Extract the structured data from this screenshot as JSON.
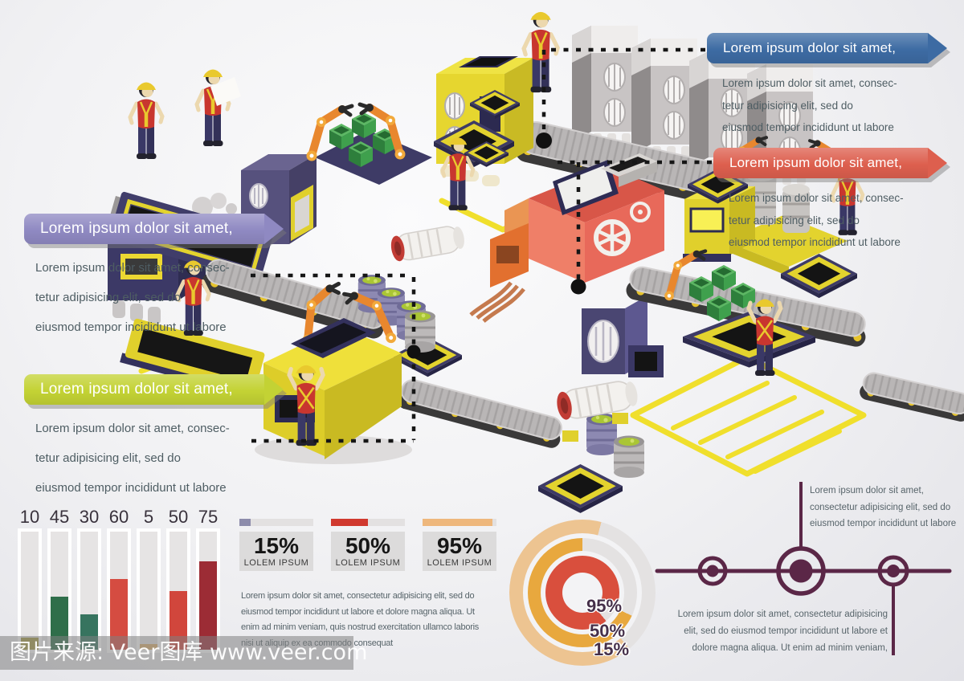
{
  "colors": {
    "background": "#f0f0f2",
    "accent_blue": "#3d6ba3",
    "accent_red": "#dd5f4e",
    "accent_purple": "#8f89c2",
    "accent_green": "#c3d234",
    "machine_yellow": "#e6d62f",
    "machine_purple": "#56517d",
    "machine_red": "#e8695a",
    "robot_arm_orange": "#e8872e",
    "crate_green": "#3fa04d",
    "conveyor_gray": "#b9b6b6",
    "worker_vest_red": "#c8362f",
    "helmet_yellow": "#e9c92e",
    "connector_dash": "#161616"
  },
  "callouts": [
    {
      "id": "top-right-blue",
      "color": "#3d6ba3",
      "title": "Lorem ipsum dolor sit amet,",
      "lines": [
        "Lorem ipsum dolor sit amet, consec-",
        "tetur adipisicing elit, sed do",
        "eiusmod tempor incididunt ut labore"
      ]
    },
    {
      "id": "right-red",
      "color": "#dd5f4e",
      "title": "Lorem ipsum dolor sit amet,",
      "lines": [
        "Lorem ipsum dolor sit amet, consec-",
        "tetur adipisicing elit, sed do",
        "eiusmod tempor incididunt ut labore"
      ]
    },
    {
      "id": "left-purple",
      "color": "#8f89c2",
      "title": "Lorem ipsum dolor sit amet,",
      "lines": [
        "Lorem ipsum dolor sit amet, consec-",
        "tetur adipisicing elit, sed do",
        "eiusmod tempor incididunt ut labore"
      ]
    },
    {
      "id": "left-green",
      "color": "#c3d234",
      "title": "Lorem ipsum dolor sit amet,",
      "lines": [
        "Lorem ipsum dolor sit amet, consec-",
        "tetur adipisicing elit, sed do",
        "eiusmod tempor incididunt ut labore"
      ]
    }
  ],
  "chart_data": [
    {
      "type": "bar",
      "title": "",
      "xlabel": "",
      "ylabel": "",
      "ylim": [
        0,
        100
      ],
      "categories": [
        "10",
        "45",
        "30",
        "60",
        "5",
        "50",
        "75"
      ],
      "values": [
        10,
        45,
        30,
        60,
        5,
        50,
        75
      ],
      "colors": [
        "#a59a42",
        "#2f6e4a",
        "#37745f",
        "#d54c41",
        "#ddb06e",
        "#d1463c",
        "#9c2c35"
      ],
      "track_color": "#e6e4e4",
      "grid": false,
      "legend": false
    },
    {
      "type": "progress-stats",
      "items": [
        {
          "display": "15%",
          "value": 15,
          "label": "LOLEM IPSUM",
          "color": "#8d8cab"
        },
        {
          "display": "50%",
          "value": 50,
          "label": "LOLEM IPSUM",
          "color": "#d0392e"
        },
        {
          "display": "95%",
          "value": 95,
          "label": "LOLEM IPSUM",
          "color": "#eeb77c"
        }
      ]
    },
    {
      "type": "donut",
      "title": "",
      "legend_position": "bottom-right-inside",
      "track_color": "#e4e2e2",
      "rings": [
        {
          "label": "95%",
          "value": 95,
          "color": "#d94f3d",
          "start_deg": 140,
          "sweep_deg": 330
        },
        {
          "label": "50%",
          "value": 50,
          "color": "#e8a83e",
          "start_deg": 115,
          "sweep_deg": 245
        },
        {
          "label": "15%",
          "value": 15,
          "color": "#edc491",
          "start_deg": 140,
          "sweep_deg": 235
        }
      ]
    }
  ],
  "paragraphs": {
    "center": [
      "Lorem ipsum dolor sit amet, consectetur adipisicing elit, sed do",
      "eiusmod tempor incididunt ut labore et dolore magna aliqua. Ut",
      "enim ad minim veniam, quis nostrud exercitation ullamco laboris",
      "nisi ut aliquip ex ea commodo consequat"
    ],
    "right_top": [
      "Lorem ipsum dolor sit amet,",
      "consectetur adipisicing elit, sed do",
      "eiusmod tempor incididunt ut labore"
    ],
    "right_bottom": [
      "Lorem ipsum dolor sit amet, consectetur adipisicing",
      "elit, sed do eiusmod tempor incididunt ut labore et",
      "dolore magna aliqua. Ut enim ad minim veniam,"
    ]
  },
  "timeline": {
    "color": "#5b2747"
  },
  "watermark": {
    "text": "图片来源: Veer图库 www.veer.com"
  }
}
